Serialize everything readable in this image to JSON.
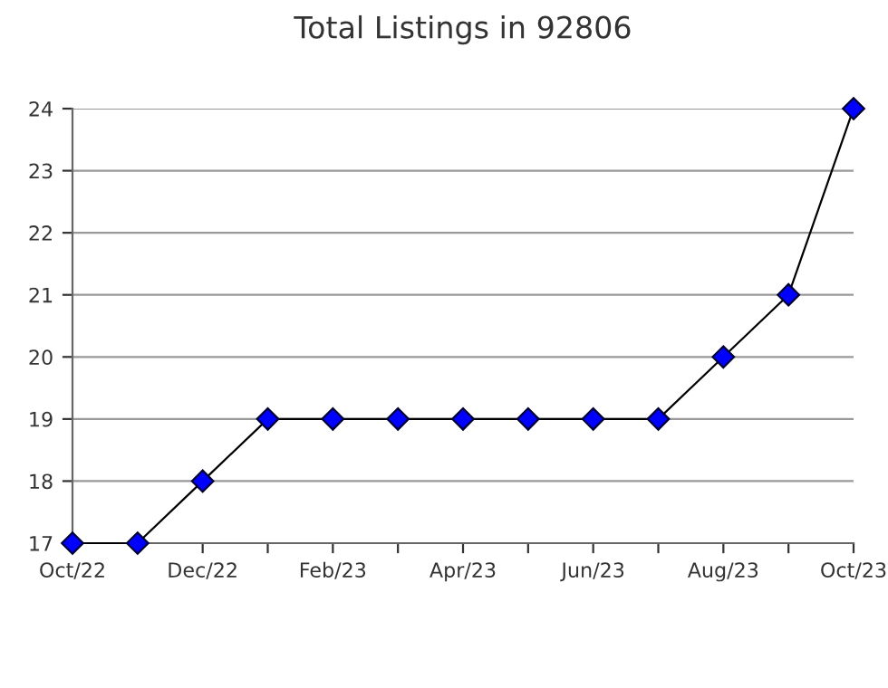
{
  "chart_data": {
    "type": "line",
    "title": "Total Listings in 92806",
    "categories": [
      "Oct/22",
      null,
      "Dec/22",
      null,
      "Feb/23",
      null,
      "Apr/23",
      null,
      "Jun/23",
      null,
      "Aug/23",
      null,
      "Oct/23"
    ],
    "series": [
      {
        "color": "#0000ff",
        "values": [
          17,
          17,
          18,
          19,
          19,
          19,
          19,
          19,
          19,
          19,
          20,
          21,
          24
        ]
      }
    ],
    "ylim": [
      17,
      24
    ],
    "yticks": [
      17,
      18,
      19,
      20,
      21,
      22,
      23,
      24
    ],
    "grid": "y",
    "marker": "diamond",
    "line_style": "solid"
  }
}
